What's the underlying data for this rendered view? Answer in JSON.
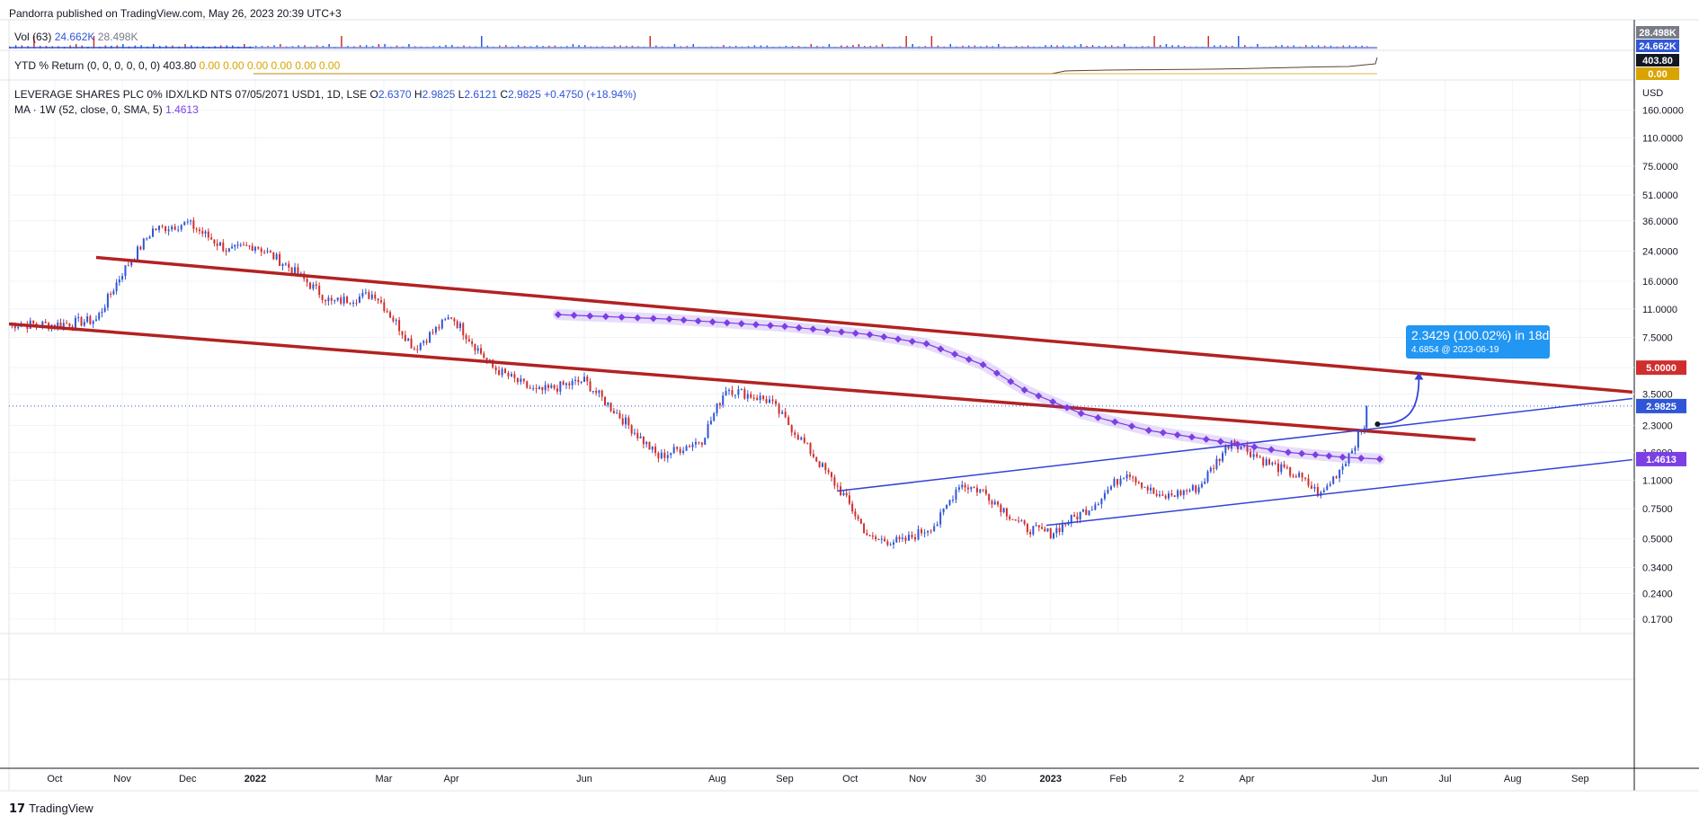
{
  "header": {
    "published": "Pandorra published on TradingView.com, May 26, 2023 20:39 UTC+3",
    "vol": {
      "label": "Vol (63)",
      "value1": "24.662K",
      "value2": "28.498K"
    },
    "ytd": {
      "label": "YTD % Return (0, 0, 0, 0, 0, 0)",
      "value": "403.80",
      "zeros": "0.00  0.00  0.00  0.00  0.00  0.00"
    },
    "symbol": {
      "name": "LEVERAGE SHARES PLC 0% IDX/LKD NTS 07/05/2071 USD1, 1D, LSE",
      "o_label": "O",
      "o": "2.6370",
      "h_label": "H",
      "h": "2.9825",
      "l_label": "L",
      "l": "2.6121",
      "c_label": "C",
      "c": "2.9825",
      "change": "+0.4750 (+18.94%)"
    },
    "ma": {
      "label": "MA · 1W (52, close, 0, SMA, 5)",
      "value": "1.4613"
    }
  },
  "callout": {
    "line1": "2.3429 (100.02%) in 18d",
    "line2": "4.6854 @ 2023-06-19"
  },
  "footer": {
    "logo": "TradingView",
    "logo_mark": "17"
  },
  "colors": {
    "up": "#2f56d6",
    "down": "#d02e2e",
    "channel": "#b22222",
    "trend": "#3443d4",
    "ma": "#7b3fe4",
    "callout": "#2196f3"
  },
  "chart_data": {
    "type": "candlestick",
    "scale": "log",
    "currency": "USD",
    "ylim": [
      0.14,
      220
    ],
    "y_ticks": [
      "160.0000",
      "110.0000",
      "75.0000",
      "51.0000",
      "36.0000",
      "24.0000",
      "16.0000",
      "11.0000",
      "7.5000",
      "5.0000",
      "3.5000",
      "2.3000",
      "1.6000",
      "1.1000",
      "0.7500",
      "0.5000",
      "0.3400",
      "0.2400",
      "0.1700"
    ],
    "x_ticks": [
      {
        "label": "Oct",
        "date": "2021-10-01"
      },
      {
        "label": "Nov",
        "date": "2021-11-01"
      },
      {
        "label": "Dec",
        "date": "2021-12-01"
      },
      {
        "label": "2022",
        "date": "2022-01-01"
      },
      {
        "label": "Mar",
        "date": "2022-03-01"
      },
      {
        "label": "Apr",
        "date": "2022-04-01"
      },
      {
        "label": "Jun",
        "date": "2022-06-01"
      },
      {
        "label": "Aug",
        "date": "2022-08-01"
      },
      {
        "label": "Sep",
        "date": "2022-09-01"
      },
      {
        "label": "Oct",
        "date": "2022-10-01"
      },
      {
        "label": "Nov",
        "date": "2022-11-01"
      },
      {
        "label": "30",
        "date": "2022-11-30"
      },
      {
        "label": "2023",
        "date": "2023-01-01"
      },
      {
        "label": "Feb",
        "date": "2023-02-01"
      },
      {
        "label": "2",
        "date": "2023-03-02"
      },
      {
        "label": "Apr",
        "date": "2023-04-01"
      },
      {
        "label": "Jun",
        "date": "2023-06-01"
      },
      {
        "label": "Jul",
        "date": "2023-07-01"
      },
      {
        "label": "Aug",
        "date": "2023-08-01"
      },
      {
        "label": "Sep",
        "date": "2023-09-01"
      }
    ],
    "price_path": [
      {
        "date": "2021-09-10",
        "close": 9.0
      },
      {
        "date": "2021-10-01",
        "close": 8.9
      },
      {
        "date": "2021-10-20",
        "close": 9.5
      },
      {
        "date": "2021-11-01",
        "close": 18.0
      },
      {
        "date": "2021-11-15",
        "close": 32.0
      },
      {
        "date": "2021-12-01",
        "close": 35.0
      },
      {
        "date": "2021-12-20",
        "close": 24.0
      },
      {
        "date": "2022-01-01",
        "close": 26.0
      },
      {
        "date": "2022-01-15",
        "close": 20.0
      },
      {
        "date": "2022-02-05",
        "close": 12.0
      },
      {
        "date": "2022-02-25",
        "close": 13.5
      },
      {
        "date": "2022-03-15",
        "close": 6.5
      },
      {
        "date": "2022-04-01",
        "close": 10.0
      },
      {
        "date": "2022-04-20",
        "close": 5.0
      },
      {
        "date": "2022-05-10",
        "close": 3.6
      },
      {
        "date": "2022-06-01",
        "close": 4.2
      },
      {
        "date": "2022-06-20",
        "close": 2.4
      },
      {
        "date": "2022-07-05",
        "close": 1.5
      },
      {
        "date": "2022-07-25",
        "close": 1.9
      },
      {
        "date": "2022-08-05",
        "close": 3.8
      },
      {
        "date": "2022-08-25",
        "close": 3.2
      },
      {
        "date": "2022-09-10",
        "close": 1.8
      },
      {
        "date": "2022-09-28",
        "close": 0.9
      },
      {
        "date": "2022-10-10",
        "close": 0.5
      },
      {
        "date": "2022-10-25",
        "close": 0.48
      },
      {
        "date": "2022-11-10",
        "close": 0.62
      },
      {
        "date": "2022-11-20",
        "close": 1.05
      },
      {
        "date": "2022-12-01",
        "close": 0.95
      },
      {
        "date": "2022-12-20",
        "close": 0.58
      },
      {
        "date": "2023-01-01",
        "close": 0.54
      },
      {
        "date": "2023-01-20",
        "close": 0.78
      },
      {
        "date": "2023-02-05",
        "close": 1.25
      },
      {
        "date": "2023-02-20",
        "close": 0.86
      },
      {
        "date": "2023-03-10",
        "close": 1.0
      },
      {
        "date": "2023-03-25",
        "close": 1.9
      },
      {
        "date": "2023-04-10",
        "close": 1.4
      },
      {
        "date": "2023-04-25",
        "close": 1.15
      },
      {
        "date": "2023-05-05",
        "close": 0.9
      },
      {
        "date": "2023-05-15",
        "close": 1.35
      },
      {
        "date": "2023-05-25",
        "close": 2.3
      },
      {
        "date": "2023-05-26",
        "close": 2.98
      }
    ],
    "ma_path": [
      {
        "date": "2022-05-20",
        "value": 10.2
      },
      {
        "date": "2022-07-10",
        "value": 9.6
      },
      {
        "date": "2022-09-01",
        "value": 8.7
      },
      {
        "date": "2022-10-10",
        "value": 7.8
      },
      {
        "date": "2022-11-05",
        "value": 6.9
      },
      {
        "date": "2022-12-01",
        "value": 5.2
      },
      {
        "date": "2022-12-20",
        "value": 3.7
      },
      {
        "date": "2023-01-15",
        "value": 2.7
      },
      {
        "date": "2023-02-15",
        "value": 2.15
      },
      {
        "date": "2023-03-20",
        "value": 1.85
      },
      {
        "date": "2023-04-20",
        "value": 1.6
      },
      {
        "date": "2023-05-15",
        "value": 1.5
      },
      {
        "date": "2023-06-01",
        "value": 1.4613
      }
    ],
    "drawings": {
      "channel_upper": [
        {
          "date": "2021-10-20",
          "value": 22
        },
        {
          "date": "2023-09-25",
          "value": 3.6
        }
      ],
      "channel_lower": [
        {
          "date": "2021-09-10",
          "value": 9.0
        },
        {
          "date": "2023-07-15",
          "value": 1.9
        }
      ],
      "trend_upper": [
        {
          "date": "2022-09-25",
          "value": 0.95
        },
        {
          "date": "2023-09-25",
          "value": 3.3
        }
      ],
      "trend_lower": [
        {
          "date": "2022-12-30",
          "value": 0.6
        },
        {
          "date": "2023-09-25",
          "value": 1.45
        }
      ],
      "projection": {
        "from": {
          "date": "2023-05-31",
          "value": 2.34
        },
        "to": {
          "date": "2023-06-19",
          "value": 4.6854
        }
      }
    },
    "price_labels": [
      {
        "text": "5.0000",
        "value": 5.0,
        "color": "#d02e2e"
      },
      {
        "text": "2.9825",
        "value": 2.9825,
        "color": "#2f56d6"
      },
      {
        "text": "1.4613",
        "value": 1.4613,
        "color": "#7b3fe4"
      }
    ],
    "last_price": 2.9825
  }
}
